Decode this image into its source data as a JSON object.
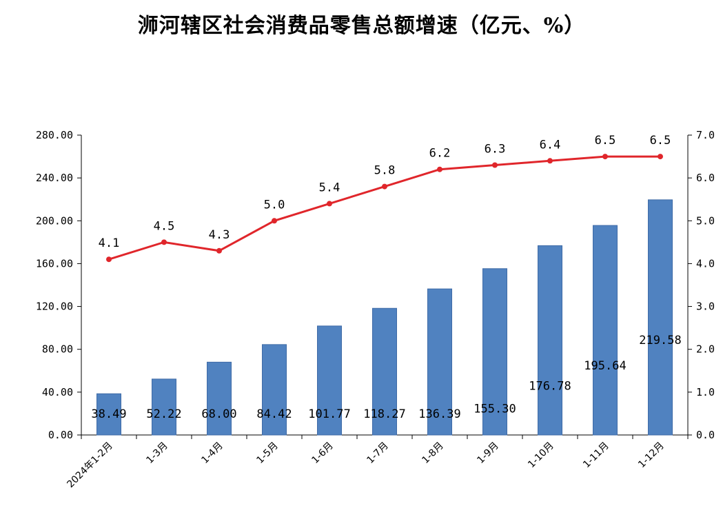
{
  "chart_data": {
    "type": "bar+line",
    "title": "浉河辖区社会消费品零售总额增速（亿元、%）",
    "categories": [
      "2024年1-2月",
      "1-3月",
      "1-4月",
      "1-5月",
      "1-6月",
      "1-7月",
      "1-8月",
      "1-9月",
      "1-10月",
      "1-11月",
      "1-12月"
    ],
    "series": [
      {
        "type": "bar",
        "axis": "left",
        "values": [
          38.49,
          52.22,
          68.0,
          84.42,
          101.77,
          118.27,
          136.39,
          155.3,
          176.78,
          195.64,
          219.58
        ],
        "labels": [
          "38.49",
          "52.22",
          "68.00",
          "84.42",
          "101.77",
          "118.27",
          "136.39",
          "155.30",
          "176.78",
          "195.64",
          "219.58"
        ]
      },
      {
        "type": "line",
        "axis": "right",
        "values": [
          4.1,
          4.5,
          4.3,
          5.0,
          5.4,
          5.8,
          6.2,
          6.3,
          6.4,
          6.5,
          6.5
        ],
        "labels": [
          "4.1",
          "4.5",
          "4.3",
          "5.0",
          "5.4",
          "5.8",
          "6.2",
          "6.3",
          "6.4",
          "6.5",
          "6.5"
        ]
      }
    ],
    "y_left": {
      "range": [
        0,
        280
      ],
      "ticks": [
        "0.00",
        "40.00",
        "80.00",
        "120.00",
        "160.00",
        "200.00",
        "240.00",
        "280.00"
      ]
    },
    "y_right": {
      "range": [
        0,
        7
      ],
      "ticks": [
        "0.0",
        "1.0",
        "2.0",
        "3.0",
        "4.0",
        "5.0",
        "6.0",
        "7.0"
      ]
    },
    "grid": false,
    "legend": "none"
  },
  "colors": {
    "bar": "#5082C0",
    "bar_edge": "#3E6AA6",
    "line": "#E0262B",
    "axis": "#000000"
  }
}
